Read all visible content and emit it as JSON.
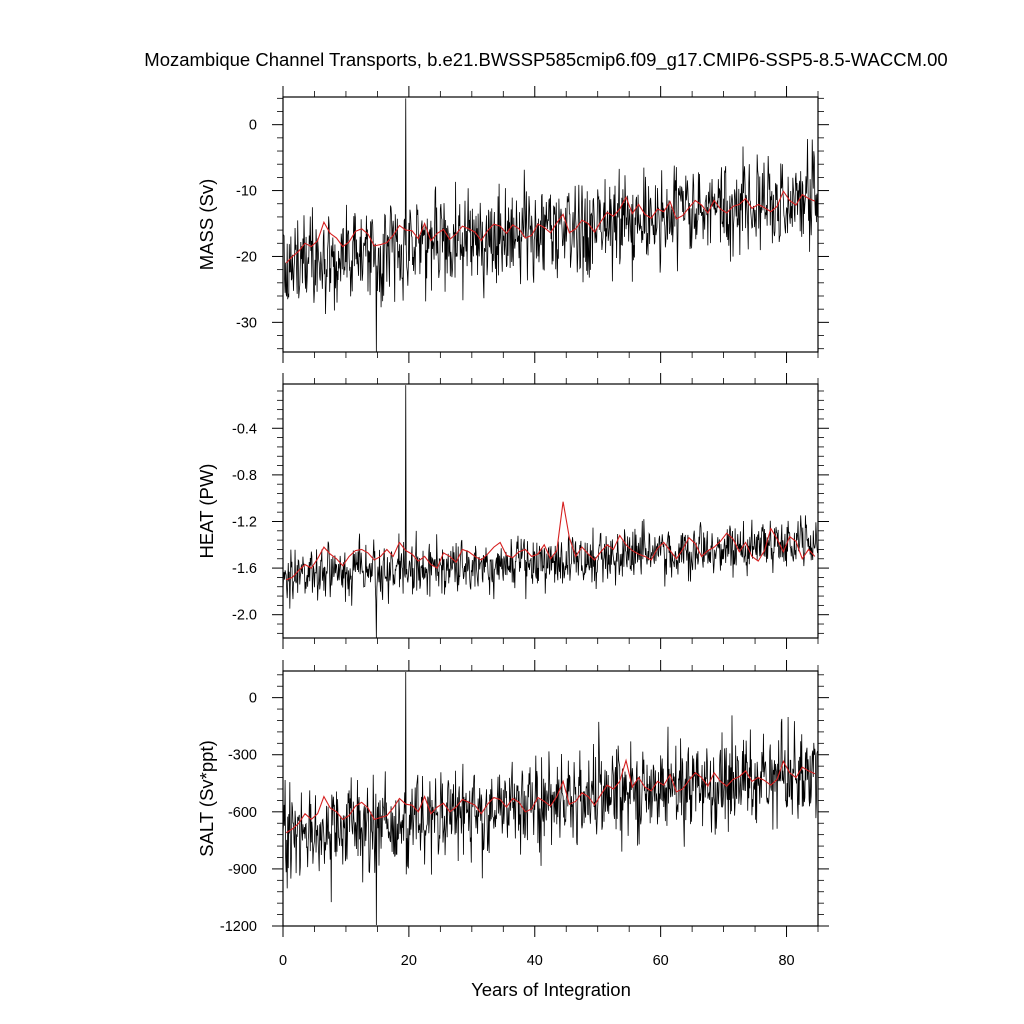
{
  "chart_data": {
    "type": "line",
    "title": "Mozambique Channel Transports, b.e21.BWSSP585cmip6.f09_g17.CMIP6-SSP5-8.5-WACCM.00",
    "xlabel": "Years of Integration",
    "xlim": [
      0,
      85
    ],
    "x_ticks": [
      "0",
      "20",
      "40",
      "60",
      "80"
    ],
    "grid": false,
    "panels": [
      {
        "ylabel": "MASS (Sv)",
        "ylim": [
          -34.5,
          4.2
        ],
        "y_ticks": [
          "0",
          "-10",
          "-20",
          "-30"
        ],
        "series": [
          {
            "color": "#000000",
            "resolution": "monthly",
            "start": -21,
            "end": -11,
            "noise": 6.2,
            "spike_max": 4,
            "spike_min": -34.5,
            "values": []
          },
          {
            "color": "#d62020",
            "resolution": "annual",
            "values": [
              -21,
              -20,
              -19.2,
              -18,
              -18.5,
              -17.6,
              -14.8,
              -16.5,
              -17.2,
              -18.5,
              -17.8,
              -16.2,
              -15.8,
              -16.6,
              -18.4,
              -18.2,
              -17.9,
              -16.8,
              -15.3,
              -16,
              -16.1,
              -17.3,
              -15,
              -17.6,
              -16.5,
              -15.9,
              -17.4,
              -16.6,
              -15.4,
              -15.8,
              -16.3,
              -17.6,
              -16.1,
              -15.1,
              -15.4,
              -16.5,
              -15.2,
              -15.8,
              -17.2,
              -16.8,
              -15.1,
              -15.6,
              -16.4,
              -14.9,
              -13.6,
              -16.4,
              -15.8,
              -14.5,
              -15,
              -16.3,
              -14.7,
              -13.3,
              -13.9,
              -12.8,
              -11,
              -13.5,
              -12.1,
              -13.6,
              -14.2,
              -12.8,
              -13.2,
              -11.7,
              -14.3,
              -13.8,
              -12.6,
              -11.5,
              -12.2,
              -13.4,
              -11.5,
              -12.8,
              -13.4,
              -12.4,
              -12.1,
              -11.2,
              -12.7,
              -12.1,
              -12.6,
              -13.2,
              -12.4,
              -10.1,
              -11.5,
              -12.2,
              -10.6,
              -11.2,
              -11.6
            ]
          }
        ]
      },
      {
        "ylabel": "HEAT (PW)",
        "ylim": [
          -2.2,
          -0.02
        ],
        "y_ticks": [
          "-0.4",
          "-0.8",
          "-1.2",
          "-1.6",
          "-2.0"
        ],
        "series": [
          {
            "color": "#000000",
            "resolution": "monthly",
            "start": -1.68,
            "end": -1.38,
            "noise": 0.2,
            "spike_max": -0.03,
            "spike_min": -2.2,
            "values": []
          },
          {
            "color": "#d62020",
            "resolution": "annual",
            "values": [
              -1.7,
              -1.68,
              -1.62,
              -1.57,
              -1.6,
              -1.52,
              -1.42,
              -1.48,
              -1.52,
              -1.58,
              -1.5,
              -1.45,
              -1.44,
              -1.47,
              -1.53,
              -1.5,
              -1.44,
              -1.5,
              -1.38,
              -1.45,
              -1.48,
              -1.54,
              -1.5,
              -1.57,
              -1.6,
              -1.47,
              -1.5,
              -1.55,
              -1.44,
              -1.46,
              -1.5,
              -1.53,
              -1.48,
              -1.42,
              -1.38,
              -1.49,
              -1.51,
              -1.46,
              -1.44,
              -1.5,
              -1.48,
              -1.4,
              -1.52,
              -1.45,
              -1.03,
              -1.34,
              -1.5,
              -1.42,
              -1.48,
              -1.53,
              -1.46,
              -1.4,
              -1.44,
              -1.32,
              -1.4,
              -1.45,
              -1.48,
              -1.5,
              -1.53,
              -1.43,
              -1.38,
              -1.45,
              -1.52,
              -1.44,
              -1.34,
              -1.39,
              -1.5,
              -1.45,
              -1.42,
              -1.37,
              -1.3,
              -1.35,
              -1.46,
              -1.38,
              -1.5,
              -1.54,
              -1.45,
              -1.26,
              -1.35,
              -1.46,
              -1.33,
              -1.37,
              -1.52,
              -1.44,
              -1.5
            ]
          }
        ]
      },
      {
        "ylabel": "SALT (Sv*ppt)",
        "ylim": [
          -1200,
          140
        ],
        "y_ticks": [
          "0",
          "-300",
          "-600",
          "-900",
          "-1200"
        ],
        "series": [
          {
            "color": "#000000",
            "resolution": "monthly",
            "start": -720,
            "end": -390,
            "noise": 215,
            "spike_max": 135,
            "spike_min": -1195,
            "values": []
          },
          {
            "color": "#d62020",
            "resolution": "annual",
            "values": [
              -710,
              -690,
              -660,
              -610,
              -640,
              -610,
              -520,
              -580,
              -600,
              -640,
              -620,
              -570,
              -550,
              -580,
              -640,
              -630,
              -620,
              -580,
              -530,
              -560,
              -565,
              -600,
              -520,
              -610,
              -575,
              -555,
              -600,
              -575,
              -535,
              -550,
              -565,
              -610,
              -560,
              -525,
              -535,
              -575,
              -530,
              -550,
              -600,
              -585,
              -525,
              -545,
              -570,
              -520,
              -440,
              -560,
              -545,
              -500,
              -520,
              -565,
              -510,
              -460,
              -480,
              -440,
              -330,
              -470,
              -420,
              -470,
              -490,
              -440,
              -460,
              -405,
              -495,
              -480,
              -435,
              -395,
              -420,
              -465,
              -395,
              -440,
              -465,
              -430,
              -415,
              -385,
              -440,
              -420,
              -435,
              -460,
              -430,
              -335,
              -395,
              -420,
              -365,
              -385,
              -400
            ]
          }
        ]
      }
    ]
  }
}
